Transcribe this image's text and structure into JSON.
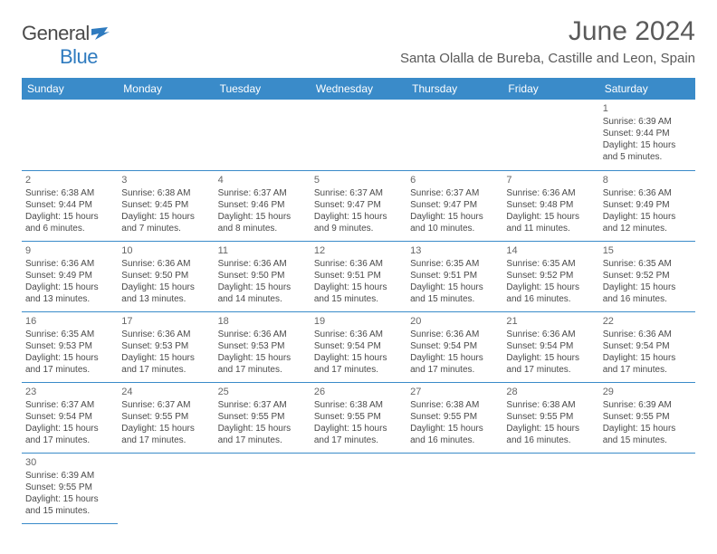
{
  "logo": {
    "text1": "General",
    "text2": "Blue"
  },
  "title": "June 2024",
  "location": "Santa Olalla de Bureba, Castille and Leon, Spain",
  "colors": {
    "header_bg": "#3a8bc9",
    "header_text": "#ffffff",
    "border": "#3a8bc9",
    "text": "#4a4a4a",
    "logo_gray": "#4a4a4a",
    "logo_blue": "#2f7bbf"
  },
  "weekdays": [
    "Sunday",
    "Monday",
    "Tuesday",
    "Wednesday",
    "Thursday",
    "Friday",
    "Saturday"
  ],
  "weeks": [
    [
      null,
      null,
      null,
      null,
      null,
      null,
      {
        "n": "1",
        "sr": "Sunrise: 6:39 AM",
        "ss": "Sunset: 9:44 PM",
        "dl": "Daylight: 15 hours and 5 minutes."
      }
    ],
    [
      {
        "n": "2",
        "sr": "Sunrise: 6:38 AM",
        "ss": "Sunset: 9:44 PM",
        "dl": "Daylight: 15 hours and 6 minutes."
      },
      {
        "n": "3",
        "sr": "Sunrise: 6:38 AM",
        "ss": "Sunset: 9:45 PM",
        "dl": "Daylight: 15 hours and 7 minutes."
      },
      {
        "n": "4",
        "sr": "Sunrise: 6:37 AM",
        "ss": "Sunset: 9:46 PM",
        "dl": "Daylight: 15 hours and 8 minutes."
      },
      {
        "n": "5",
        "sr": "Sunrise: 6:37 AM",
        "ss": "Sunset: 9:47 PM",
        "dl": "Daylight: 15 hours and 9 minutes."
      },
      {
        "n": "6",
        "sr": "Sunrise: 6:37 AM",
        "ss": "Sunset: 9:47 PM",
        "dl": "Daylight: 15 hours and 10 minutes."
      },
      {
        "n": "7",
        "sr": "Sunrise: 6:36 AM",
        "ss": "Sunset: 9:48 PM",
        "dl": "Daylight: 15 hours and 11 minutes."
      },
      {
        "n": "8",
        "sr": "Sunrise: 6:36 AM",
        "ss": "Sunset: 9:49 PM",
        "dl": "Daylight: 15 hours and 12 minutes."
      }
    ],
    [
      {
        "n": "9",
        "sr": "Sunrise: 6:36 AM",
        "ss": "Sunset: 9:49 PM",
        "dl": "Daylight: 15 hours and 13 minutes."
      },
      {
        "n": "10",
        "sr": "Sunrise: 6:36 AM",
        "ss": "Sunset: 9:50 PM",
        "dl": "Daylight: 15 hours and 13 minutes."
      },
      {
        "n": "11",
        "sr": "Sunrise: 6:36 AM",
        "ss": "Sunset: 9:50 PM",
        "dl": "Daylight: 15 hours and 14 minutes."
      },
      {
        "n": "12",
        "sr": "Sunrise: 6:36 AM",
        "ss": "Sunset: 9:51 PM",
        "dl": "Daylight: 15 hours and 15 minutes."
      },
      {
        "n": "13",
        "sr": "Sunrise: 6:35 AM",
        "ss": "Sunset: 9:51 PM",
        "dl": "Daylight: 15 hours and 15 minutes."
      },
      {
        "n": "14",
        "sr": "Sunrise: 6:35 AM",
        "ss": "Sunset: 9:52 PM",
        "dl": "Daylight: 15 hours and 16 minutes."
      },
      {
        "n": "15",
        "sr": "Sunrise: 6:35 AM",
        "ss": "Sunset: 9:52 PM",
        "dl": "Daylight: 15 hours and 16 minutes."
      }
    ],
    [
      {
        "n": "16",
        "sr": "Sunrise: 6:35 AM",
        "ss": "Sunset: 9:53 PM",
        "dl": "Daylight: 15 hours and 17 minutes."
      },
      {
        "n": "17",
        "sr": "Sunrise: 6:36 AM",
        "ss": "Sunset: 9:53 PM",
        "dl": "Daylight: 15 hours and 17 minutes."
      },
      {
        "n": "18",
        "sr": "Sunrise: 6:36 AM",
        "ss": "Sunset: 9:53 PM",
        "dl": "Daylight: 15 hours and 17 minutes."
      },
      {
        "n": "19",
        "sr": "Sunrise: 6:36 AM",
        "ss": "Sunset: 9:54 PM",
        "dl": "Daylight: 15 hours and 17 minutes."
      },
      {
        "n": "20",
        "sr": "Sunrise: 6:36 AM",
        "ss": "Sunset: 9:54 PM",
        "dl": "Daylight: 15 hours and 17 minutes."
      },
      {
        "n": "21",
        "sr": "Sunrise: 6:36 AM",
        "ss": "Sunset: 9:54 PM",
        "dl": "Daylight: 15 hours and 17 minutes."
      },
      {
        "n": "22",
        "sr": "Sunrise: 6:36 AM",
        "ss": "Sunset: 9:54 PM",
        "dl": "Daylight: 15 hours and 17 minutes."
      }
    ],
    [
      {
        "n": "23",
        "sr": "Sunrise: 6:37 AM",
        "ss": "Sunset: 9:54 PM",
        "dl": "Daylight: 15 hours and 17 minutes."
      },
      {
        "n": "24",
        "sr": "Sunrise: 6:37 AM",
        "ss": "Sunset: 9:55 PM",
        "dl": "Daylight: 15 hours and 17 minutes."
      },
      {
        "n": "25",
        "sr": "Sunrise: 6:37 AM",
        "ss": "Sunset: 9:55 PM",
        "dl": "Daylight: 15 hours and 17 minutes."
      },
      {
        "n": "26",
        "sr": "Sunrise: 6:38 AM",
        "ss": "Sunset: 9:55 PM",
        "dl": "Daylight: 15 hours and 17 minutes."
      },
      {
        "n": "27",
        "sr": "Sunrise: 6:38 AM",
        "ss": "Sunset: 9:55 PM",
        "dl": "Daylight: 15 hours and 16 minutes."
      },
      {
        "n": "28",
        "sr": "Sunrise: 6:38 AM",
        "ss": "Sunset: 9:55 PM",
        "dl": "Daylight: 15 hours and 16 minutes."
      },
      {
        "n": "29",
        "sr": "Sunrise: 6:39 AM",
        "ss": "Sunset: 9:55 PM",
        "dl": "Daylight: 15 hours and 15 minutes."
      }
    ],
    [
      {
        "n": "30",
        "sr": "Sunrise: 6:39 AM",
        "ss": "Sunset: 9:55 PM",
        "dl": "Daylight: 15 hours and 15 minutes."
      },
      null,
      null,
      null,
      null,
      null,
      null
    ]
  ]
}
